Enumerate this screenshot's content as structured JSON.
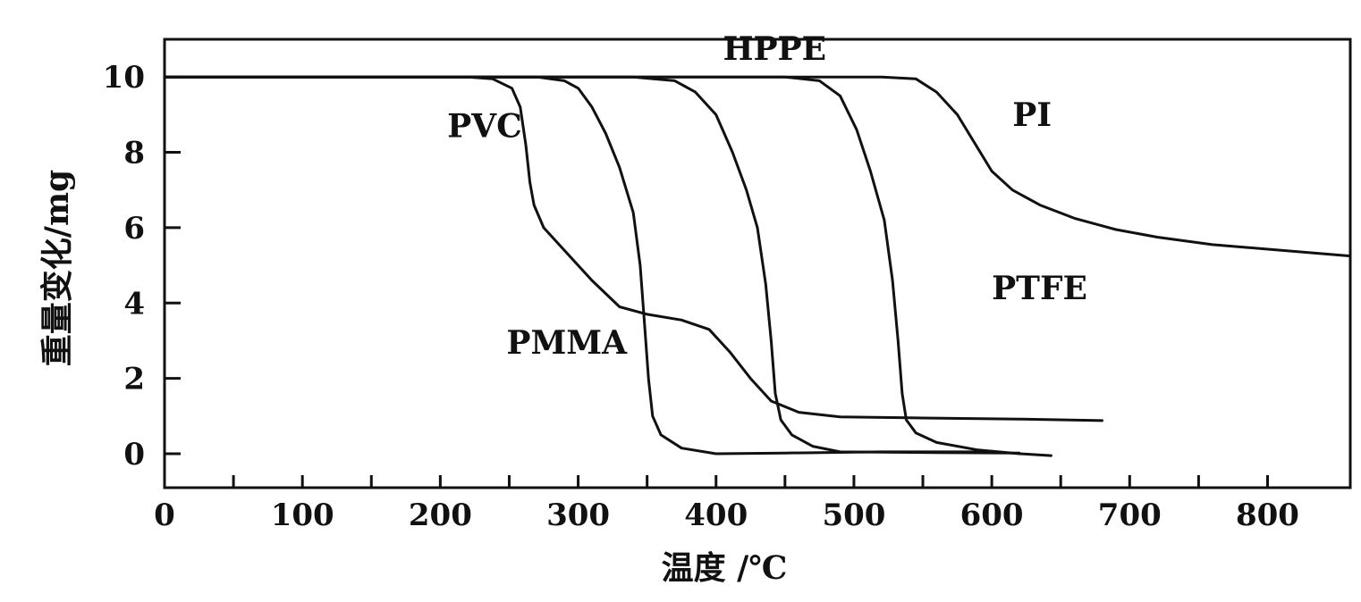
{
  "chart_data": {
    "type": "line",
    "xlabel": "温度 /℃",
    "ylabel": "重量变化/mg",
    "xlim": [
      0,
      860
    ],
    "ylim": [
      -0.9,
      11
    ],
    "x_ticks": [
      0,
      100,
      200,
      300,
      400,
      500,
      600,
      700,
      800
    ],
    "y_ticks": [
      0,
      2,
      4,
      6,
      8,
      10
    ],
    "grid": false,
    "legend": "none",
    "line_color": "#111111",
    "series": [
      {
        "name": "PVC",
        "points": [
          [
            0,
            10
          ],
          [
            220,
            10
          ],
          [
            238,
            9.95
          ],
          [
            252,
            9.7
          ],
          [
            258,
            9.2
          ],
          [
            262,
            8.2
          ],
          [
            265,
            7.2
          ],
          [
            268,
            6.6
          ],
          [
            275,
            6.0
          ],
          [
            290,
            5.4
          ],
          [
            310,
            4.6
          ],
          [
            330,
            3.9
          ],
          [
            350,
            3.7
          ],
          [
            375,
            3.55
          ],
          [
            395,
            3.3
          ],
          [
            410,
            2.7
          ],
          [
            425,
            2.0
          ],
          [
            440,
            1.4
          ],
          [
            460,
            1.1
          ],
          [
            490,
            0.98
          ],
          [
            550,
            0.95
          ],
          [
            620,
            0.92
          ],
          [
            680,
            0.88
          ]
        ]
      },
      {
        "name": "PMMA",
        "points": [
          [
            0,
            10
          ],
          [
            270,
            10
          ],
          [
            290,
            9.9
          ],
          [
            300,
            9.7
          ],
          [
            310,
            9.2
          ],
          [
            320,
            8.5
          ],
          [
            330,
            7.6
          ],
          [
            340,
            6.4
          ],
          [
            345,
            5.0
          ],
          [
            348,
            3.5
          ],
          [
            351,
            2.0
          ],
          [
            354,
            1.0
          ],
          [
            360,
            0.5
          ],
          [
            375,
            0.15
          ],
          [
            400,
            0.0
          ],
          [
            450,
            0.02
          ],
          [
            520,
            0.05
          ],
          [
            600,
            0.05
          ]
        ]
      },
      {
        "name": "HPPE",
        "points": [
          [
            0,
            10
          ],
          [
            340,
            10
          ],
          [
            370,
            9.9
          ],
          [
            385,
            9.6
          ],
          [
            400,
            9.0
          ],
          [
            412,
            8.0
          ],
          [
            422,
            7.0
          ],
          [
            430,
            6.0
          ],
          [
            436,
            4.5
          ],
          [
            440,
            3.0
          ],
          [
            443,
            1.6
          ],
          [
            447,
            0.9
          ],
          [
            455,
            0.5
          ],
          [
            470,
            0.2
          ],
          [
            490,
            0.05
          ],
          [
            560,
            0.03
          ],
          [
            620,
            0.02
          ]
        ]
      },
      {
        "name": "PTFE",
        "points": [
          [
            0,
            10
          ],
          [
            450,
            10
          ],
          [
            475,
            9.9
          ],
          [
            490,
            9.5
          ],
          [
            502,
            8.6
          ],
          [
            512,
            7.5
          ],
          [
            522,
            6.2
          ],
          [
            528,
            4.6
          ],
          [
            532,
            3.0
          ],
          [
            535,
            1.6
          ],
          [
            538,
            0.9
          ],
          [
            545,
            0.55
          ],
          [
            560,
            0.3
          ],
          [
            590,
            0.1
          ],
          [
            620,
            0.0
          ],
          [
            643,
            -0.05
          ]
        ]
      },
      {
        "name": "PI",
        "points": [
          [
            0,
            10
          ],
          [
            520,
            10
          ],
          [
            545,
            9.95
          ],
          [
            560,
            9.6
          ],
          [
            575,
            9.0
          ],
          [
            590,
            8.1
          ],
          [
            600,
            7.5
          ],
          [
            615,
            7.0
          ],
          [
            635,
            6.6
          ],
          [
            660,
            6.25
          ],
          [
            690,
            5.95
          ],
          [
            720,
            5.75
          ],
          [
            760,
            5.55
          ],
          [
            810,
            5.4
          ],
          [
            860,
            5.25
          ]
        ]
      }
    ],
    "annotations": [
      {
        "text": "HPPE",
        "x": 405,
        "y": 10.45
      },
      {
        "text": "PVC",
        "x": 205,
        "y": 8.4
      },
      {
        "text": "PI",
        "x": 615,
        "y": 8.7
      },
      {
        "text": "PTFE",
        "x": 600,
        "y": 4.1
      },
      {
        "text": "PMMA",
        "x": 248,
        "y": 2.65
      }
    ]
  }
}
